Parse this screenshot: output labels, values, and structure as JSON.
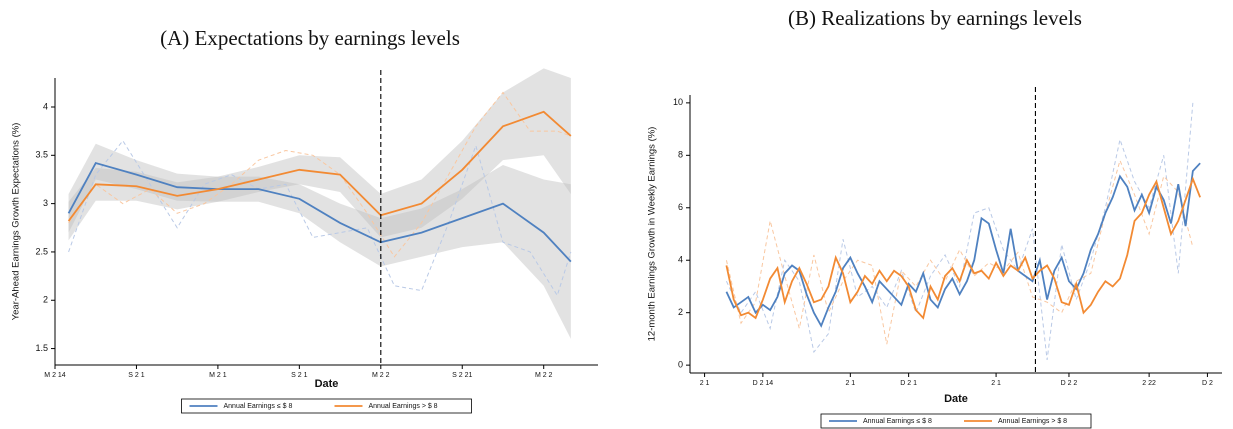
{
  "chart_data": [
    {
      "type": "line",
      "title": "(A) Expectations by earnings levels",
      "xlabel": "Date",
      "ylabel": "Year-Ahead Earnings Growth Expectations (%)",
      "xlim": [
        0,
        40
      ],
      "xticks": [
        {
          "value": 0,
          "label": "M 2 14"
        },
        {
          "value": 6,
          "label": "S 2 1"
        },
        {
          "value": 12,
          "label": "M 2 1"
        },
        {
          "value": 18,
          "label": "S 2 1"
        },
        {
          "value": 24,
          "label": "M 2 2"
        },
        {
          "value": 30,
          "label": "S 2 21"
        },
        {
          "value": 36,
          "label": "M 2 2"
        }
      ],
      "ylim": [
        1.33,
        4.3
      ],
      "yticks": [
        1.5,
        2,
        2.5,
        3,
        3.5,
        4
      ],
      "vline": 24,
      "x": [
        1,
        3,
        6,
        9,
        12,
        15,
        18,
        21,
        24,
        27,
        30,
        33,
        36,
        38
      ],
      "series": [
        {
          "name": "Annual Earnings ≤ $ 8",
          "color": "#4f81c0",
          "values": [
            2.9,
            3.42,
            3.3,
            3.17,
            3.15,
            3.15,
            3.05,
            2.8,
            2.6,
            2.7,
            2.85,
            3.0,
            2.7,
            2.4
          ],
          "lower": [
            2.7,
            3.25,
            3.15,
            3.03,
            3.02,
            3.02,
            2.9,
            2.6,
            2.35,
            2.45,
            2.55,
            2.6,
            2.15,
            1.6
          ],
          "upper": [
            3.1,
            3.62,
            3.45,
            3.31,
            3.28,
            3.28,
            3.2,
            3.0,
            2.85,
            2.95,
            3.15,
            3.4,
            3.25,
            3.2
          ]
        },
        {
          "name": "Annual Earnings > $ 8",
          "color": "#f28a33",
          "values": [
            2.82,
            3.2,
            3.18,
            3.08,
            3.15,
            3.25,
            3.35,
            3.3,
            2.88,
            3.0,
            3.35,
            3.8,
            3.95,
            3.7
          ],
          "lower": [
            2.62,
            3.03,
            3.03,
            2.94,
            3.02,
            3.12,
            3.2,
            3.12,
            2.65,
            2.75,
            3.05,
            3.45,
            3.5,
            3.1
          ],
          "upper": [
            3.02,
            3.37,
            3.33,
            3.22,
            3.28,
            3.38,
            3.5,
            3.48,
            3.1,
            3.25,
            3.65,
            4.15,
            4.4,
            4.3
          ]
        },
        {
          "color": "#b9c9e6",
          "dash": true,
          "x": [
            1,
            3,
            5,
            7,
            9,
            11,
            13,
            15,
            17,
            19,
            21,
            23,
            25,
            27,
            29,
            31,
            33,
            35,
            37,
            38
          ],
          "values": [
            2.5,
            3.3,
            3.65,
            3.2,
            2.75,
            3.2,
            3.3,
            3.15,
            3.2,
            2.65,
            2.7,
            2.75,
            2.15,
            2.1,
            2.8,
            3.6,
            2.6,
            2.5,
            2.05,
            2.5
          ]
        },
        {
          "color": "#f9c7a0",
          "dash": true,
          "x": [
            1,
            3,
            5,
            7,
            9,
            11,
            13,
            15,
            17,
            19,
            21,
            23,
            25,
            27,
            29,
            31,
            33,
            35,
            37,
            38
          ],
          "values": [
            2.8,
            3.2,
            3.0,
            3.15,
            2.9,
            3.0,
            3.2,
            3.45,
            3.55,
            3.5,
            3.3,
            2.9,
            2.45,
            2.8,
            3.3,
            3.8,
            4.15,
            3.75,
            3.75,
            3.7
          ]
        }
      ]
    },
    {
      "type": "line",
      "title": "(B) Realizations by earnings levels",
      "xlabel": "Date",
      "ylabel": "12-month Earnings Growth in Weekly Earnings (%)",
      "xlim": [
        0,
        73
      ],
      "xticks": [
        {
          "value": 2,
          "label": "2 1"
        },
        {
          "value": 10,
          "label": "D 2 14"
        },
        {
          "value": 22,
          "label": "2 1"
        },
        {
          "value": 30,
          "label": "D 2 1"
        },
        {
          "value": 42,
          "label": "2 1"
        },
        {
          "value": 52,
          "label": "D 2 2"
        },
        {
          "value": 63,
          "label": "2 22"
        },
        {
          "value": 71,
          "label": "D 2"
        }
      ],
      "ylim": [
        -0.3,
        10.3
      ],
      "yticks": [
        0,
        2,
        4,
        6,
        8,
        10
      ],
      "vline": 47.4,
      "x": [
        5,
        6,
        7,
        8,
        9,
        10,
        11,
        12,
        13,
        14,
        15,
        16,
        17,
        18,
        19,
        20,
        21,
        22,
        23,
        24,
        25,
        26,
        27,
        28,
        29,
        30,
        31,
        32,
        33,
        34,
        35,
        36,
        37,
        38,
        39,
        40,
        41,
        42,
        43,
        44,
        45,
        46,
        47,
        48,
        49,
        50,
        51,
        52,
        53,
        54,
        55,
        56,
        57,
        58,
        59,
        60,
        61,
        62,
        63,
        64,
        65,
        66,
        67,
        68,
        69,
        70
      ],
      "series": [
        {
          "color": "#b9c9e6",
          "dash": true,
          "x": [
            5,
            7,
            9,
            11,
            13,
            15,
            17,
            19,
            21,
            23,
            25,
            27,
            29,
            31,
            33,
            35,
            37,
            39,
            41,
            43,
            45,
            47,
            49,
            51,
            53,
            55,
            57,
            59,
            61,
            63,
            65,
            67,
            69
          ],
          "values": [
            3.2,
            2.0,
            2.8,
            1.4,
            4.0,
            3.2,
            0.5,
            1.2,
            4.8,
            2.6,
            3.0,
            2.2,
            3.6,
            2.0,
            3.4,
            4.2,
            3.0,
            5.8,
            6.0,
            4.4,
            3.6,
            5.2,
            0.2,
            4.6,
            2.5,
            4.0,
            6.0,
            8.6,
            7.0,
            6.0,
            8.0,
            3.5,
            10.0
          ]
        },
        {
          "color": "#f9c7a0",
          "dash": true,
          "x": [
            5,
            7,
            9,
            11,
            13,
            15,
            17,
            19,
            21,
            23,
            25,
            27,
            29,
            31,
            33,
            35,
            37,
            39,
            41,
            43,
            45,
            47,
            49,
            51,
            53,
            55,
            57,
            59,
            61,
            63,
            65,
            67,
            69
          ],
          "values": [
            4.0,
            1.6,
            2.4,
            5.5,
            3.4,
            1.4,
            4.2,
            2.0,
            3.2,
            4.0,
            3.8,
            0.8,
            3.6,
            3.0,
            4.0,
            3.2,
            4.4,
            3.4,
            3.9,
            3.6,
            4.3,
            2.6,
            2.4,
            2.0,
            3.2,
            3.5,
            5.8,
            7.8,
            6.5,
            5.0,
            7.2,
            6.6,
            4.5
          ]
        },
        {
          "name": "Annual Earnings ≤ $ 8",
          "color": "#4f81c0",
          "values": [
            2.8,
            2.2,
            2.4,
            2.6,
            2.0,
            2.3,
            2.1,
            2.6,
            3.5,
            3.8,
            3.6,
            2.7,
            2.0,
            1.5,
            2.2,
            2.8,
            3.7,
            4.1,
            3.5,
            3.0,
            2.4,
            3.2,
            2.9,
            2.6,
            2.3,
            3.1,
            2.8,
            3.5,
            2.5,
            2.2,
            2.9,
            3.3,
            2.7,
            3.2,
            4.0,
            5.6,
            5.4,
            4.4,
            3.5,
            5.2,
            3.6,
            3.4,
            3.2,
            4.0,
            2.5,
            3.6,
            4.1,
            3.2,
            2.9,
            3.5,
            4.4,
            5.0,
            5.8,
            6.4,
            7.2,
            6.8,
            5.9,
            6.5,
            5.8,
            6.8,
            6.3,
            5.4,
            6.9,
            5.3,
            7.4,
            7.7
          ]
        },
        {
          "name": "Annual Earnings > $ 8",
          "color": "#f28a33",
          "values": [
            3.8,
            2.5,
            1.9,
            2.0,
            1.8,
            2.5,
            3.3,
            3.7,
            2.4,
            3.2,
            3.7,
            3.1,
            2.4,
            2.5,
            3.0,
            4.1,
            3.5,
            2.4,
            2.8,
            3.4,
            3.1,
            3.6,
            3.2,
            3.6,
            3.4,
            3.0,
            2.1,
            1.8,
            3.0,
            2.5,
            3.4,
            3.7,
            3.2,
            4.0,
            3.5,
            3.6,
            3.3,
            3.9,
            3.4,
            3.8,
            3.6,
            4.1,
            3.3,
            3.6,
            3.8,
            3.3,
            2.4,
            2.3,
            3.1,
            2.0,
            2.3,
            2.8,
            3.2,
            3.0,
            3.3,
            4.2,
            5.5,
            5.8,
            6.5,
            7.0,
            6.0,
            5.0,
            5.5,
            6.3,
            7.1,
            6.4
          ]
        }
      ]
    }
  ]
}
